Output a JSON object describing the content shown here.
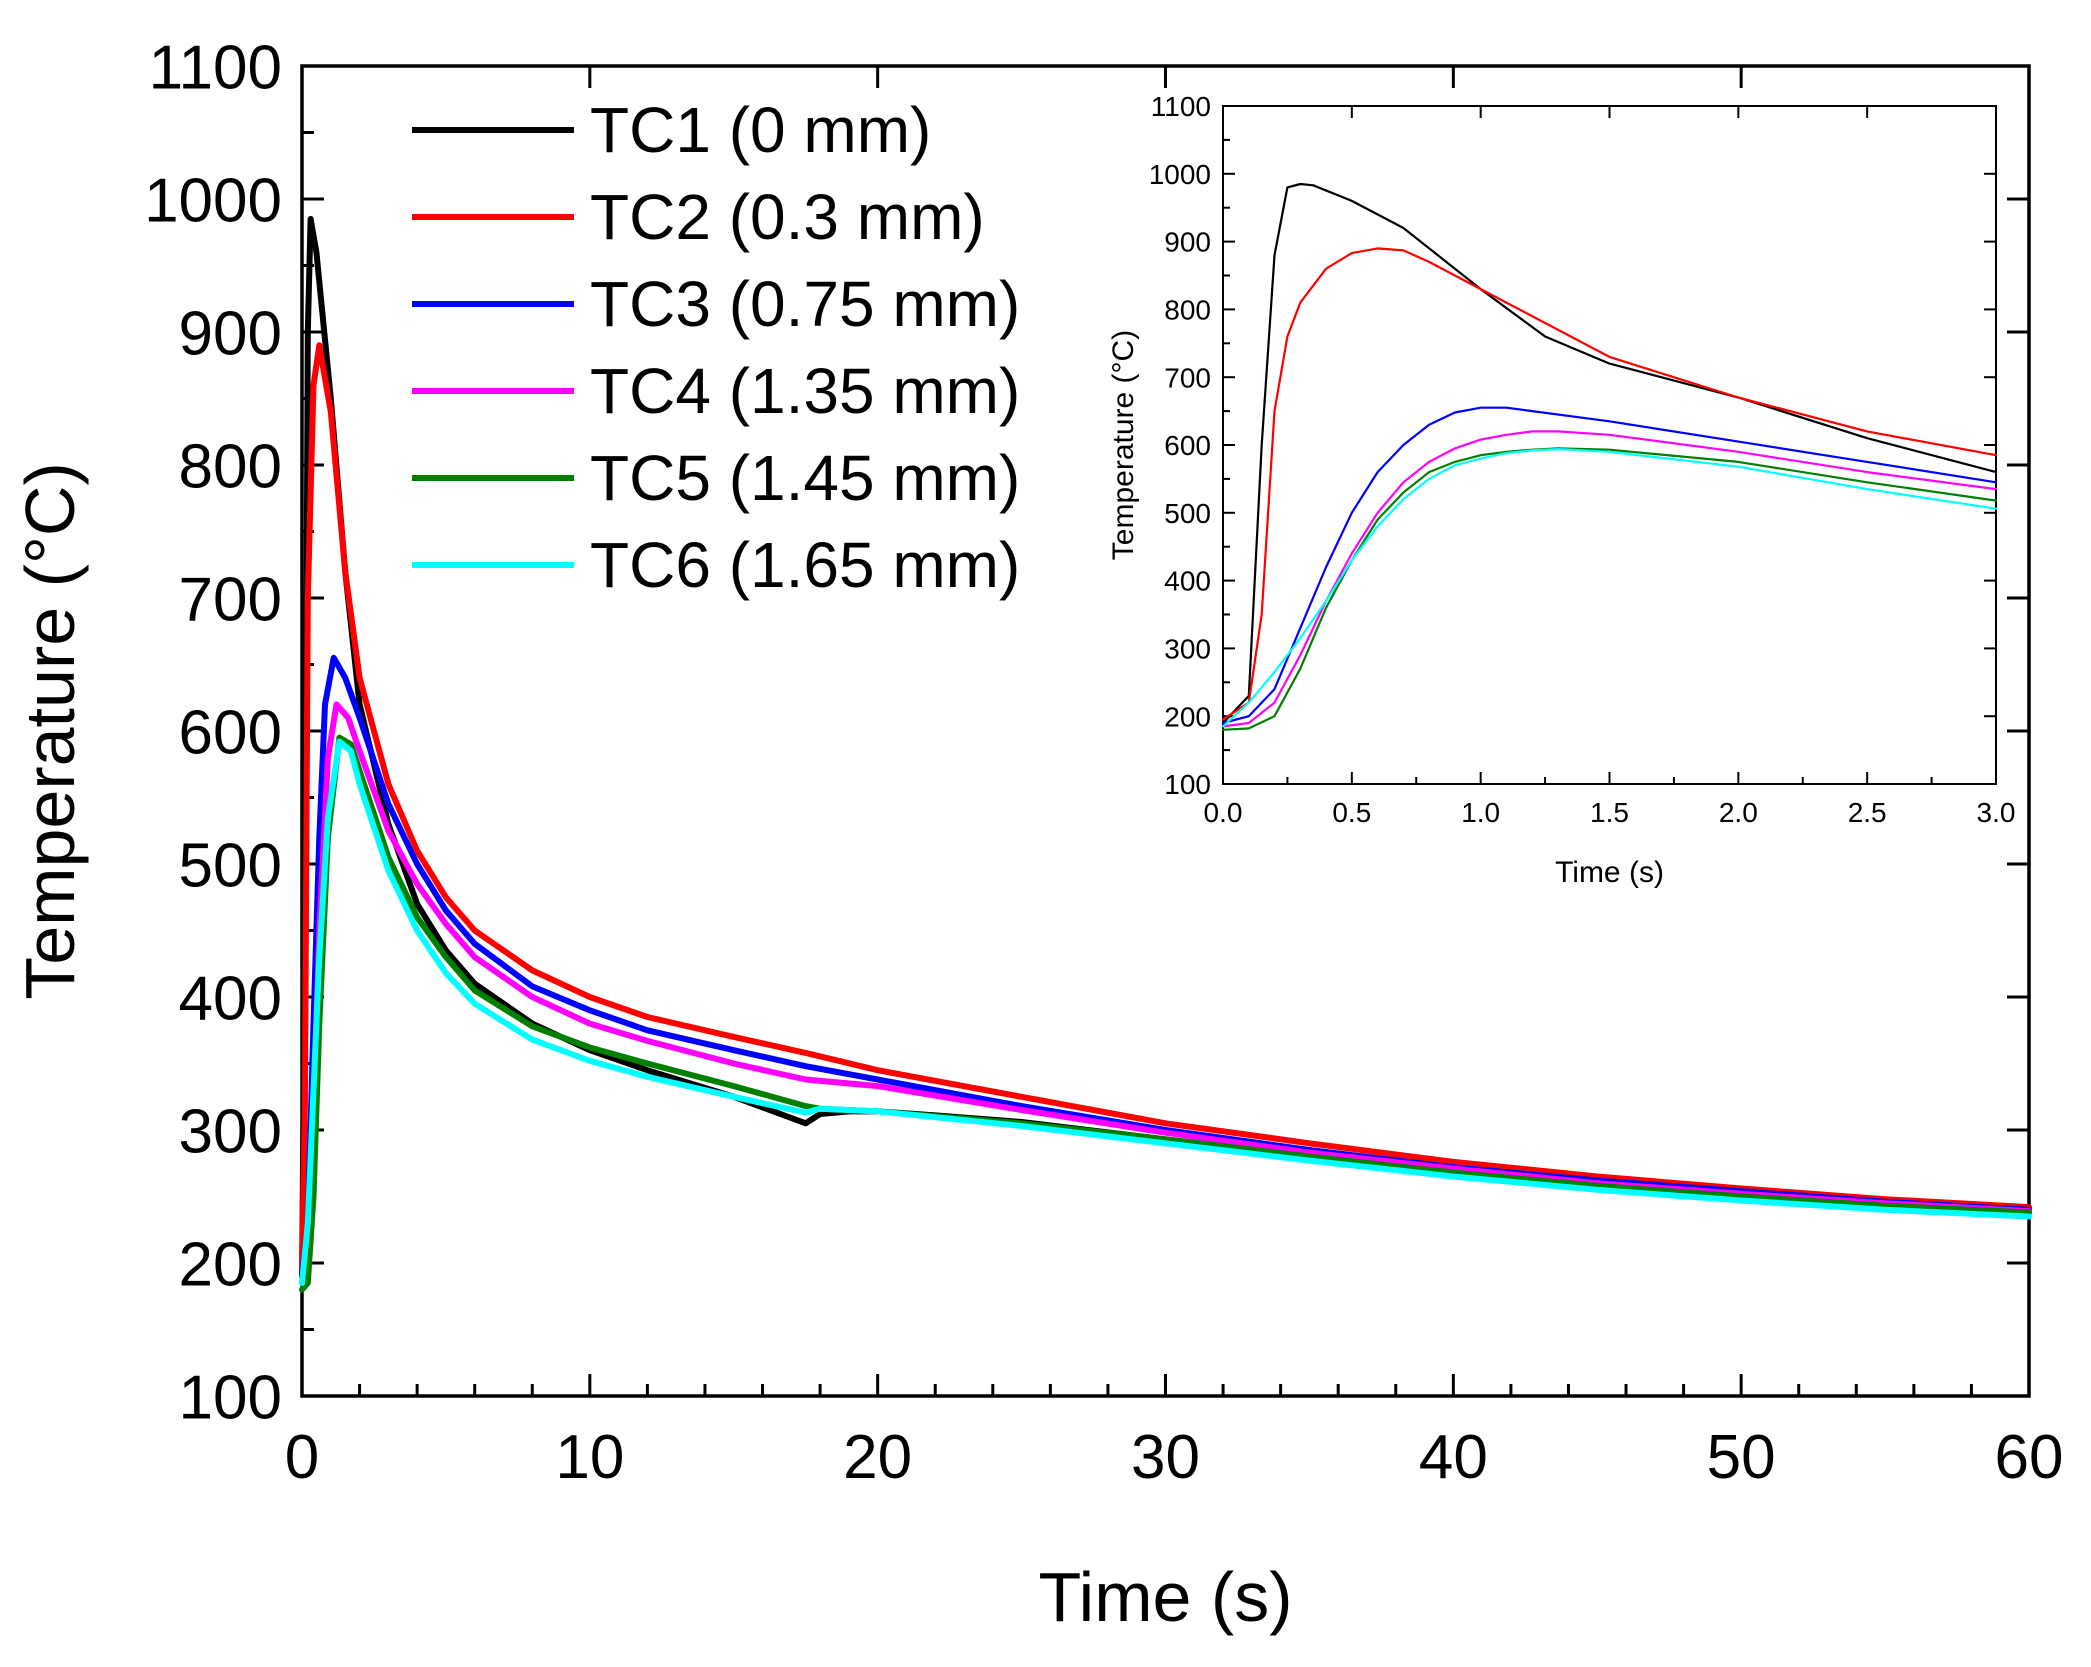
{
  "chart_data": [
    {
      "id": "main",
      "type": "line",
      "title": "",
      "xlabel": "Time (s)",
      "ylabel": "Temperature (°C)",
      "xlim": [
        0,
        60
      ],
      "ylim": [
        100,
        1100
      ],
      "xticks": [
        0,
        10,
        20,
        30,
        40,
        50,
        60
      ],
      "yticks": [
        100,
        200,
        300,
        400,
        500,
        600,
        700,
        800,
        900,
        1000,
        1100
      ],
      "grid": false,
      "legend": "top-left",
      "series": [
        {
          "name": "TC1 (0 mm)",
          "color": "#000000",
          "x": [
            0,
            0.1,
            0.2,
            0.3,
            0.5,
            1,
            1.5,
            2,
            3,
            4,
            5,
            6,
            8,
            10,
            12,
            15,
            17.5,
            18,
            19,
            20,
            22,
            25,
            30,
            35,
            40,
            45,
            50,
            55,
            60
          ],
          "y": [
            190,
            420,
            900,
            985,
            960,
            850,
            720,
            620,
            530,
            470,
            435,
            410,
            380,
            360,
            345,
            325,
            305,
            312,
            314,
            314,
            311,
            306,
            293,
            280,
            268,
            258,
            250,
            244,
            240
          ]
        },
        {
          "name": "TC2 (0.3 mm)",
          "color": "#ff0000",
          "x": [
            0,
            0.1,
            0.2,
            0.4,
            0.6,
            1,
            1.5,
            2,
            3,
            4,
            5,
            6,
            8,
            10,
            12,
            15,
            17.5,
            20,
            25,
            30,
            35,
            40,
            45,
            50,
            55,
            60
          ],
          "y": [
            195,
            320,
            700,
            860,
            890,
            840,
            720,
            640,
            560,
            510,
            475,
            450,
            420,
            400,
            385,
            370,
            358,
            345,
            325,
            305,
            290,
            276,
            265,
            256,
            248,
            242
          ]
        },
        {
          "name": "TC3 (0.75 mm)",
          "color": "#0000ff",
          "x": [
            0,
            0.2,
            0.4,
            0.6,
            0.8,
            1.1,
            1.5,
            2,
            3,
            4,
            5,
            6,
            8,
            10,
            12,
            15,
            17.5,
            20,
            25,
            30,
            35,
            40,
            45,
            50,
            55,
            60
          ],
          "y": [
            190,
            230,
            380,
            520,
            620,
            655,
            640,
            610,
            545,
            500,
            465,
            440,
            408,
            390,
            375,
            360,
            348,
            338,
            318,
            300,
            285,
            272,
            262,
            254,
            246,
            240
          ]
        },
        {
          "name": "TC4 (1.35 mm)",
          "color": "#ff00ff",
          "x": [
            0,
            0.2,
            0.4,
            0.6,
            0.9,
            1.2,
            1.6,
            2,
            3,
            4,
            5,
            6,
            8,
            10,
            12,
            15,
            17.5,
            20,
            25,
            30,
            35,
            40,
            45,
            50,
            55,
            60
          ],
          "y": [
            185,
            210,
            320,
            450,
            580,
            620,
            610,
            585,
            525,
            485,
            455,
            430,
            400,
            380,
            367,
            350,
            338,
            333,
            315,
            298,
            283,
            271,
            260,
            252,
            245,
            239
          ]
        },
        {
          "name": "TC5 (1.45 mm)",
          "color": "#007f00",
          "x": [
            0,
            0.2,
            0.4,
            0.6,
            0.9,
            1.3,
            1.7,
            2,
            3,
            4,
            5,
            6,
            8,
            10,
            12,
            15,
            17.5,
            18,
            20,
            25,
            30,
            35,
            40,
            45,
            50,
            55,
            60
          ],
          "y": [
            180,
            185,
            250,
            380,
            520,
            595,
            590,
            570,
            505,
            460,
            430,
            405,
            378,
            362,
            350,
            333,
            318,
            316,
            314,
            305,
            293,
            280,
            268,
            258,
            250,
            243,
            238
          ]
        },
        {
          "name": "TC6 (1.65 mm)",
          "color": "#00ffff",
          "x": [
            0,
            0.2,
            0.4,
            0.6,
            0.9,
            1.3,
            1.7,
            2,
            3,
            4,
            5,
            6,
            8,
            10,
            12,
            15,
            17.5,
            18,
            20,
            25,
            30,
            35,
            40,
            45,
            50,
            55,
            60
          ],
          "y": [
            185,
            230,
            330,
            430,
            535,
            592,
            585,
            560,
            495,
            450,
            418,
            395,
            368,
            352,
            340,
            325,
            313,
            316,
            314,
            303,
            290,
            277,
            265,
            255,
            247,
            240,
            235
          ]
        }
      ]
    },
    {
      "id": "inset",
      "type": "line",
      "title": "",
      "xlabel": "Time (s)",
      "ylabel": "Temperature (°C)",
      "xlim": [
        0,
        3
      ],
      "ylim": [
        100,
        1100
      ],
      "xticks": [
        0.0,
        0.5,
        1.0,
        1.5,
        2.0,
        2.5,
        3.0
      ],
      "xtick_labels": [
        "0.0",
        "0.5",
        "1.0",
        "1.5",
        "2.0",
        "2.5",
        "3.0"
      ],
      "yticks": [
        100,
        200,
        300,
        400,
        500,
        600,
        700,
        800,
        900,
        1000,
        1100
      ],
      "grid": false,
      "legend": "none",
      "series": [
        {
          "name": "TC1 (0 mm)",
          "color": "#000000",
          "x": [
            0,
            0.1,
            0.15,
            0.2,
            0.25,
            0.3,
            0.35,
            0.5,
            0.7,
            1.0,
            1.25,
            1.5,
            2.0,
            2.5,
            3.0
          ],
          "y": [
            190,
            230,
            600,
            880,
            980,
            985,
            983,
            960,
            920,
            830,
            760,
            720,
            670,
            610,
            560
          ]
        },
        {
          "name": "TC2 (0.3 mm)",
          "color": "#ff0000",
          "x": [
            0,
            0.1,
            0.15,
            0.2,
            0.25,
            0.3,
            0.4,
            0.5,
            0.6,
            0.7,
            0.8,
            1.0,
            1.5,
            2.0,
            2.5,
            3.0
          ],
          "y": [
            195,
            220,
            350,
            650,
            760,
            810,
            860,
            883,
            890,
            887,
            870,
            830,
            730,
            670,
            620,
            585
          ]
        },
        {
          "name": "TC3 (0.75 mm)",
          "color": "#0000ff",
          "x": [
            0,
            0.1,
            0.2,
            0.3,
            0.4,
            0.5,
            0.6,
            0.7,
            0.8,
            0.9,
            1.0,
            1.1,
            1.2,
            1.5,
            2.0,
            2.5,
            3.0
          ],
          "y": [
            190,
            200,
            240,
            330,
            420,
            500,
            560,
            600,
            630,
            648,
            655,
            655,
            650,
            635,
            605,
            575,
            545
          ]
        },
        {
          "name": "TC4 (1.35 mm)",
          "color": "#ff00ff",
          "x": [
            0,
            0.1,
            0.2,
            0.3,
            0.4,
            0.5,
            0.6,
            0.7,
            0.8,
            0.9,
            1.0,
            1.1,
            1.2,
            1.3,
            1.5,
            2.0,
            2.5,
            3.0
          ],
          "y": [
            185,
            190,
            220,
            290,
            370,
            440,
            500,
            545,
            575,
            595,
            608,
            615,
            620,
            620,
            615,
            590,
            560,
            535
          ]
        },
        {
          "name": "TC5 (1.45 mm)",
          "color": "#007f00",
          "x": [
            0,
            0.1,
            0.2,
            0.3,
            0.4,
            0.5,
            0.6,
            0.7,
            0.8,
            0.9,
            1.0,
            1.1,
            1.2,
            1.3,
            1.5,
            2.0,
            2.5,
            3.0
          ],
          "y": [
            180,
            182,
            200,
            270,
            360,
            430,
            490,
            530,
            560,
            575,
            585,
            590,
            593,
            595,
            593,
            575,
            545,
            518
          ]
        },
        {
          "name": "TC6 (1.65 mm)",
          "color": "#00ffff",
          "x": [
            0,
            0.1,
            0.2,
            0.3,
            0.4,
            0.5,
            0.6,
            0.7,
            0.8,
            0.9,
            1.0,
            1.1,
            1.2,
            1.3,
            1.5,
            2.0,
            2.5,
            3.0
          ],
          "y": [
            185,
            220,
            265,
            315,
            370,
            430,
            480,
            520,
            550,
            570,
            580,
            588,
            592,
            594,
            590,
            568,
            535,
            506
          ]
        }
      ]
    }
  ]
}
